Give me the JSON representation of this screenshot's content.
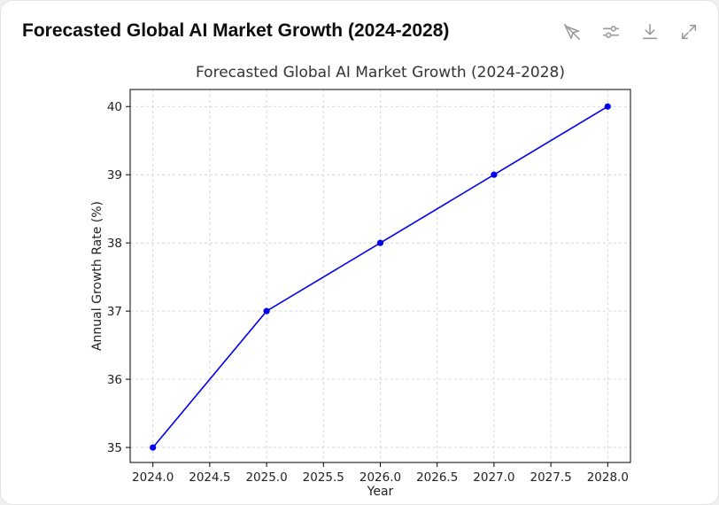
{
  "header": {
    "title": "Forecasted Global AI Market Growth (2024-2028)",
    "icons": [
      "interactive-toggle-icon",
      "settings-sliders-icon",
      "download-icon",
      "expand-icon"
    ]
  },
  "colors": {
    "line": "#0000ee",
    "grid": "#cccccc",
    "icon": "#9a9a9a"
  },
  "chart_data": {
    "type": "line",
    "title": "Forecasted Global AI Market Growth (2024-2028)",
    "xlabel": "Year",
    "ylabel": "Annual Growth Rate (%)",
    "x": [
      2024,
      2025,
      2026,
      2027,
      2028
    ],
    "series": [
      {
        "name": "Annual Growth Rate",
        "values": [
          35,
          37,
          38,
          39,
          40
        ]
      }
    ],
    "xlim": [
      2023.8,
      2028.2
    ],
    "ylim": [
      34.78,
      40.25
    ],
    "xticks": [
      2024.0,
      2024.5,
      2025.0,
      2025.5,
      2026.0,
      2026.5,
      2027.0,
      2027.5,
      2028.0
    ],
    "xtick_labels": [
      "2024.0",
      "2024.5",
      "2025.0",
      "2025.5",
      "2026.0",
      "2026.5",
      "2027.0",
      "2027.5",
      "2028.0"
    ],
    "yticks": [
      35,
      36,
      37,
      38,
      39,
      40
    ],
    "ytick_labels": [
      "35",
      "36",
      "37",
      "38",
      "39",
      "40"
    ],
    "grid": true,
    "markers": true
  }
}
